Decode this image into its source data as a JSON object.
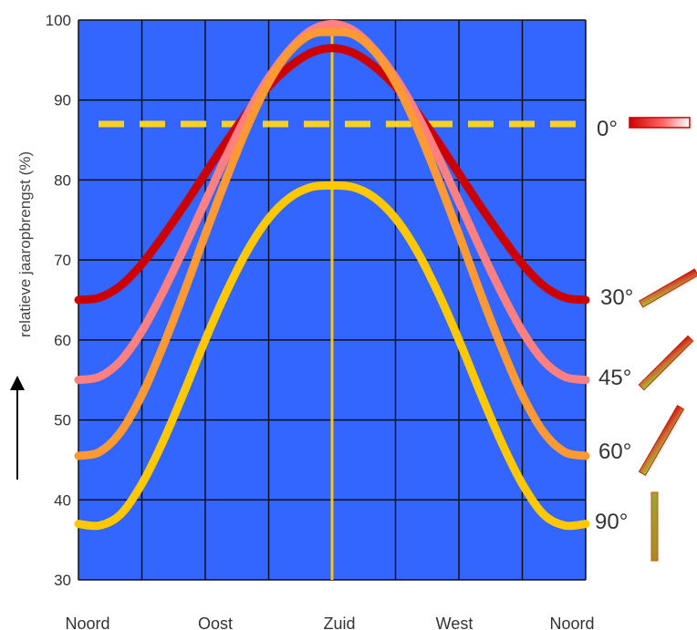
{
  "chart_data": {
    "type": "line",
    "ylabel": "relatieve jaaropbrengst (%)",
    "ylim": [
      30,
      100
    ],
    "yticks": [
      30,
      40,
      50,
      60,
      70,
      80,
      90,
      100
    ],
    "categories": [
      "Noord",
      "Oost",
      "Zuid",
      "West",
      "Noord"
    ],
    "grid": true,
    "background_color": "#3366ff",
    "x": [
      0,
      15,
      30,
      45,
      60,
      75,
      90,
      105,
      120,
      135,
      150,
      165,
      180,
      195,
      210,
      225,
      240,
      255,
      270,
      285,
      300,
      315,
      330,
      345,
      360
    ],
    "series": [
      {
        "name": "0°",
        "color": "#ffd21f",
        "dashed": true,
        "values": [
          87,
          87,
          87,
          87,
          87,
          87,
          87,
          87,
          87,
          87,
          87,
          87,
          87,
          87,
          87,
          87,
          87,
          87,
          87,
          87,
          87,
          87,
          87,
          87,
          87
        ]
      },
      {
        "name": "30°",
        "color": "#cc0000",
        "values": [
          65,
          65.3,
          66.8,
          69.5,
          73,
          76.8,
          80.8,
          84.8,
          88.5,
          91.7,
          94.2,
          95.9,
          96.5,
          95.9,
          94.2,
          91.7,
          88.5,
          84.8,
          80.8,
          76.8,
          73,
          69.5,
          66.8,
          65.3,
          65
        ]
      },
      {
        "name": "45°",
        "color": "#ff8080",
        "values": [
          55,
          55.4,
          57.4,
          61.1,
          66,
          71.5,
          77.3,
          83,
          88.3,
          92.8,
          96.3,
          98.7,
          99.5,
          98.7,
          96.3,
          92.8,
          88.3,
          83,
          77.3,
          71.5,
          66,
          61.1,
          57.4,
          55.4,
          55
        ]
      },
      {
        "name": "60°",
        "color": "#ff9933",
        "values": [
          45.5,
          46,
          48.5,
          53.1,
          59.2,
          66,
          73.2,
          80.2,
          86.7,
          92.2,
          96.1,
          98.2,
          98.5,
          98.2,
          96.1,
          92.2,
          86.7,
          80.2,
          73.2,
          66,
          59.2,
          53.1,
          48.5,
          46,
          45.5
        ]
      },
      {
        "name": "90°",
        "color": "#ffc800",
        "values": [
          37,
          36.8,
          38.2,
          42,
          47.3,
          53.5,
          60,
          66,
          71.2,
          75.2,
          77.8,
          79.1,
          79.3,
          79.1,
          77.8,
          75.2,
          71.2,
          66,
          60,
          53.5,
          47.3,
          42,
          38.2,
          36.8,
          37
        ]
      }
    ],
    "angle_labels": [
      "0°",
      "30°",
      "45°",
      "60°",
      "90°"
    ]
  }
}
